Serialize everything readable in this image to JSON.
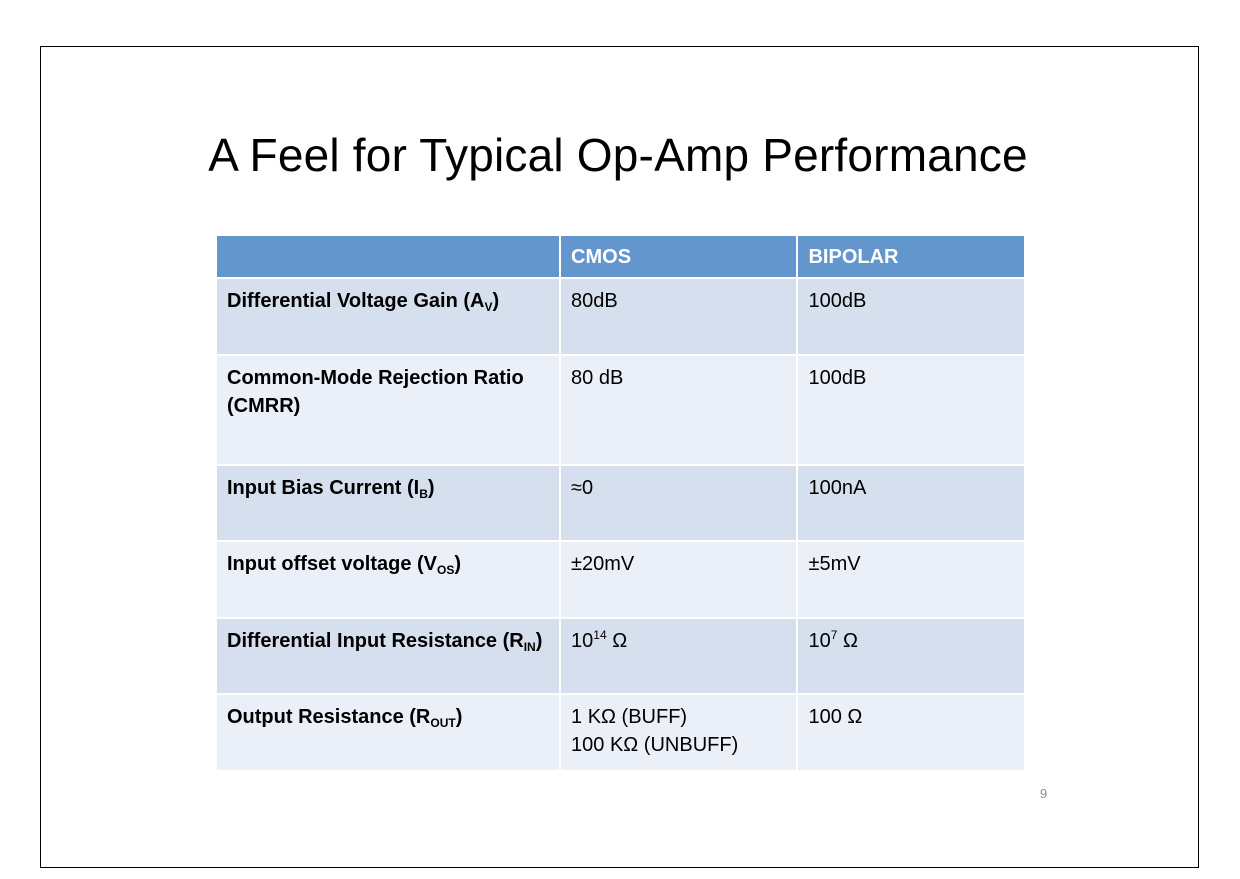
{
  "slide": {
    "title": "A Feel for Typical Op-Amp Performance",
    "page_number": "9"
  },
  "table": {
    "headers": [
      "",
      "CMOS",
      "BIPOLAR"
    ],
    "rows": [
      {
        "param": "Differential Voltage Gain (A",
        "param_sub": "V",
        "param_end": ")",
        "cmos": "80dB",
        "bipolar": "100dB"
      },
      {
        "param": "Common-Mode Rejection Ratio (CMRR)",
        "cmos": "80 dB",
        "bipolar": "100dB"
      },
      {
        "param": "Input Bias Current (I",
        "param_sub": "B",
        "param_end": ")",
        "cmos": "≈0",
        "bipolar": "100nA"
      },
      {
        "param": "Input offset voltage (V",
        "param_sub": "OS",
        "param_end": ")",
        "cmos": "±20mV",
        "bipolar": "±5mV"
      },
      {
        "param": "Differential Input Resistance (R",
        "param_sub": "IN",
        "param_end": ")",
        "cmos_base": "10",
        "cmos_exp": "14",
        "cmos_unit": " Ω",
        "bipolar_base": "10",
        "bipolar_exp": "7",
        "bipolar_unit": " Ω"
      },
      {
        "param": "Output Resistance (R",
        "param_sub": "OUT",
        "param_end": ")",
        "cmos_line1": "1 KΩ (BUFF)",
        "cmos_line2": "100 KΩ (UNBUFF)",
        "bipolar": "100 Ω"
      }
    ]
  }
}
